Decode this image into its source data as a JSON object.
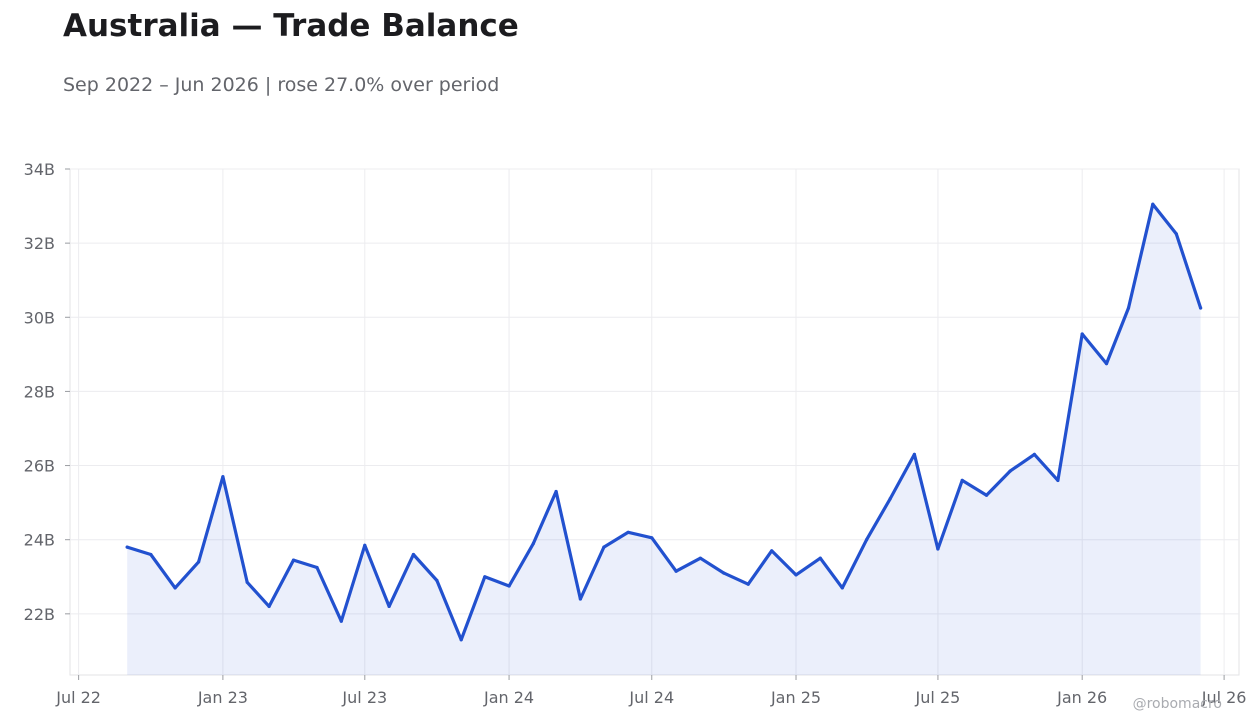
{
  "title": "Australia — Trade Balance",
  "subtitle": "Sep 2022 – Jun 2026 | rose 27.0% over period",
  "watermark": "@robomacro",
  "colors": {
    "line": "#2251cf",
    "fill": "#2251cf",
    "grid": "#ececef",
    "text": "#63656b"
  },
  "chart_data": {
    "type": "area",
    "x_ticks": [
      "Jul 22",
      "Jan 23",
      "Jul 23",
      "Jan 24",
      "Jul 24",
      "Jan 25",
      "Jul 25",
      "Jan 26",
      "Jul 26"
    ],
    "y_ticks": [
      "22B",
      "24B",
      "26B",
      "28B",
      "30B",
      "32B",
      "34B"
    ],
    "ylim": [
      20.35,
      34
    ],
    "xlim": [
      "2022-06-20",
      "2026-07-20"
    ],
    "grid": true,
    "series": [
      {
        "x": [
          "2022-09",
          "2022-10",
          "2022-11",
          "2022-12",
          "2023-01",
          "2023-02",
          "2023-03",
          "2023-04",
          "2023-05",
          "2023-06",
          "2023-07",
          "2023-08",
          "2023-09",
          "2023-10",
          "2023-11",
          "2023-12",
          "2024-01",
          "2024-02",
          "2024-03",
          "2024-04",
          "2024-05",
          "2024-06",
          "2024-07",
          "2024-08",
          "2024-09",
          "2024-10",
          "2024-11",
          "2024-12",
          "2025-01",
          "2025-02",
          "2025-03",
          "2025-04",
          "2025-05",
          "2025-06",
          "2025-07",
          "2025-08",
          "2025-09",
          "2025-10",
          "2025-11",
          "2025-12",
          "2026-01",
          "2026-02",
          "2026-03",
          "2026-04",
          "2026-05",
          "2026-06"
        ],
        "values": [
          23.8,
          23.6,
          22.7,
          23.4,
          25.7,
          22.85,
          22.2,
          23.45,
          23.25,
          21.8,
          23.85,
          22.2,
          23.6,
          22.9,
          21.3,
          23.0,
          22.75,
          23.9,
          25.3,
          22.4,
          23.8,
          24.2,
          24.05,
          23.15,
          23.5,
          23.1,
          22.8,
          23.7,
          23.05,
          23.5,
          22.7,
          24.0,
          25.1,
          26.3,
          23.75,
          25.6,
          25.2,
          25.85,
          26.3,
          25.6,
          29.55,
          28.75,
          30.25,
          33.05,
          32.25,
          30.25
        ]
      }
    ]
  }
}
